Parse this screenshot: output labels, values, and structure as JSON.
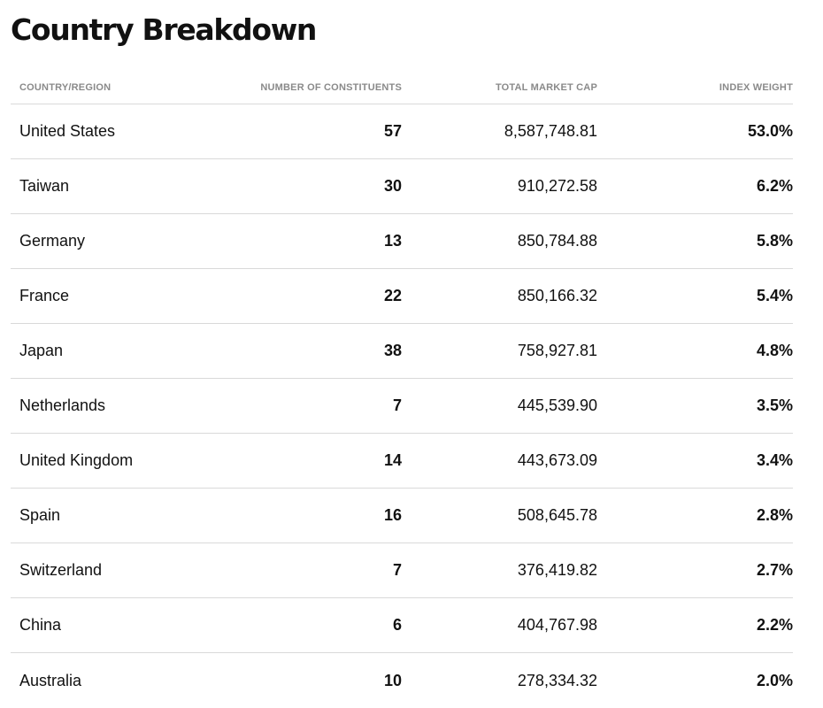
{
  "title": "Country Breakdown",
  "table": {
    "columns": [
      "COUNTRY/REGION",
      "NUMBER OF CONSTITUENTS",
      "TOTAL MARKET CAP",
      "INDEX WEIGHT"
    ],
    "rows": [
      {
        "country": "United States",
        "constituents": "57",
        "market_cap": "8,587,748.81",
        "weight": "53.0%"
      },
      {
        "country": "Taiwan",
        "constituents": "30",
        "market_cap": "910,272.58",
        "weight": "6.2%"
      },
      {
        "country": "Germany",
        "constituents": "13",
        "market_cap": "850,784.88",
        "weight": "5.8%"
      },
      {
        "country": "France",
        "constituents": "22",
        "market_cap": "850,166.32",
        "weight": "5.4%"
      },
      {
        "country": "Japan",
        "constituents": "38",
        "market_cap": "758,927.81",
        "weight": "4.8%"
      },
      {
        "country": "Netherlands",
        "constituents": "7",
        "market_cap": "445,539.90",
        "weight": "3.5%"
      },
      {
        "country": "United Kingdom",
        "constituents": "14",
        "market_cap": "443,673.09",
        "weight": "3.4%"
      },
      {
        "country": "Spain",
        "constituents": "16",
        "market_cap": "508,645.78",
        "weight": "2.8%"
      },
      {
        "country": "Switzerland",
        "constituents": "7",
        "market_cap": "376,419.82",
        "weight": "2.7%"
      },
      {
        "country": "China",
        "constituents": "6",
        "market_cap": "404,767.98",
        "weight": "2.2%"
      },
      {
        "country": "Australia",
        "constituents": "10",
        "market_cap": "278,334.32",
        "weight": "2.0%"
      }
    ]
  }
}
